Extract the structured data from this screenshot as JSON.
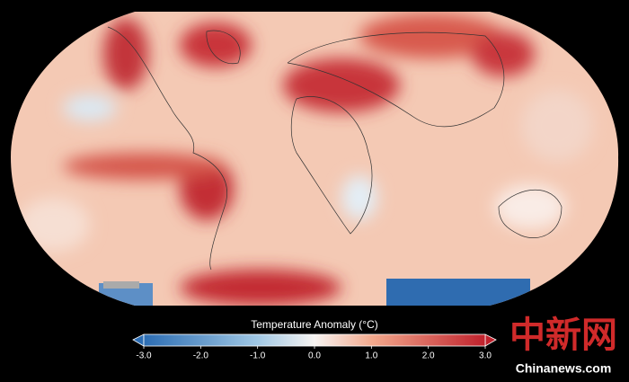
{
  "colorbar": {
    "title": "Temperature Anomaly (°C)",
    "range": [
      -3,
      3
    ],
    "ticks": [
      {
        "value": -3,
        "label": "-3.0"
      },
      {
        "value": -2,
        "label": "-2.0"
      },
      {
        "value": -1,
        "label": "-1.0"
      },
      {
        "value": 0,
        "label": "0.0"
      },
      {
        "value": 1,
        "label": "1.0"
      },
      {
        "value": 2,
        "label": "2.0"
      },
      {
        "value": 3,
        "label": "3.0"
      }
    ]
  },
  "watermark": {
    "logo": "中新网",
    "site": "Chinanews.com"
  }
}
